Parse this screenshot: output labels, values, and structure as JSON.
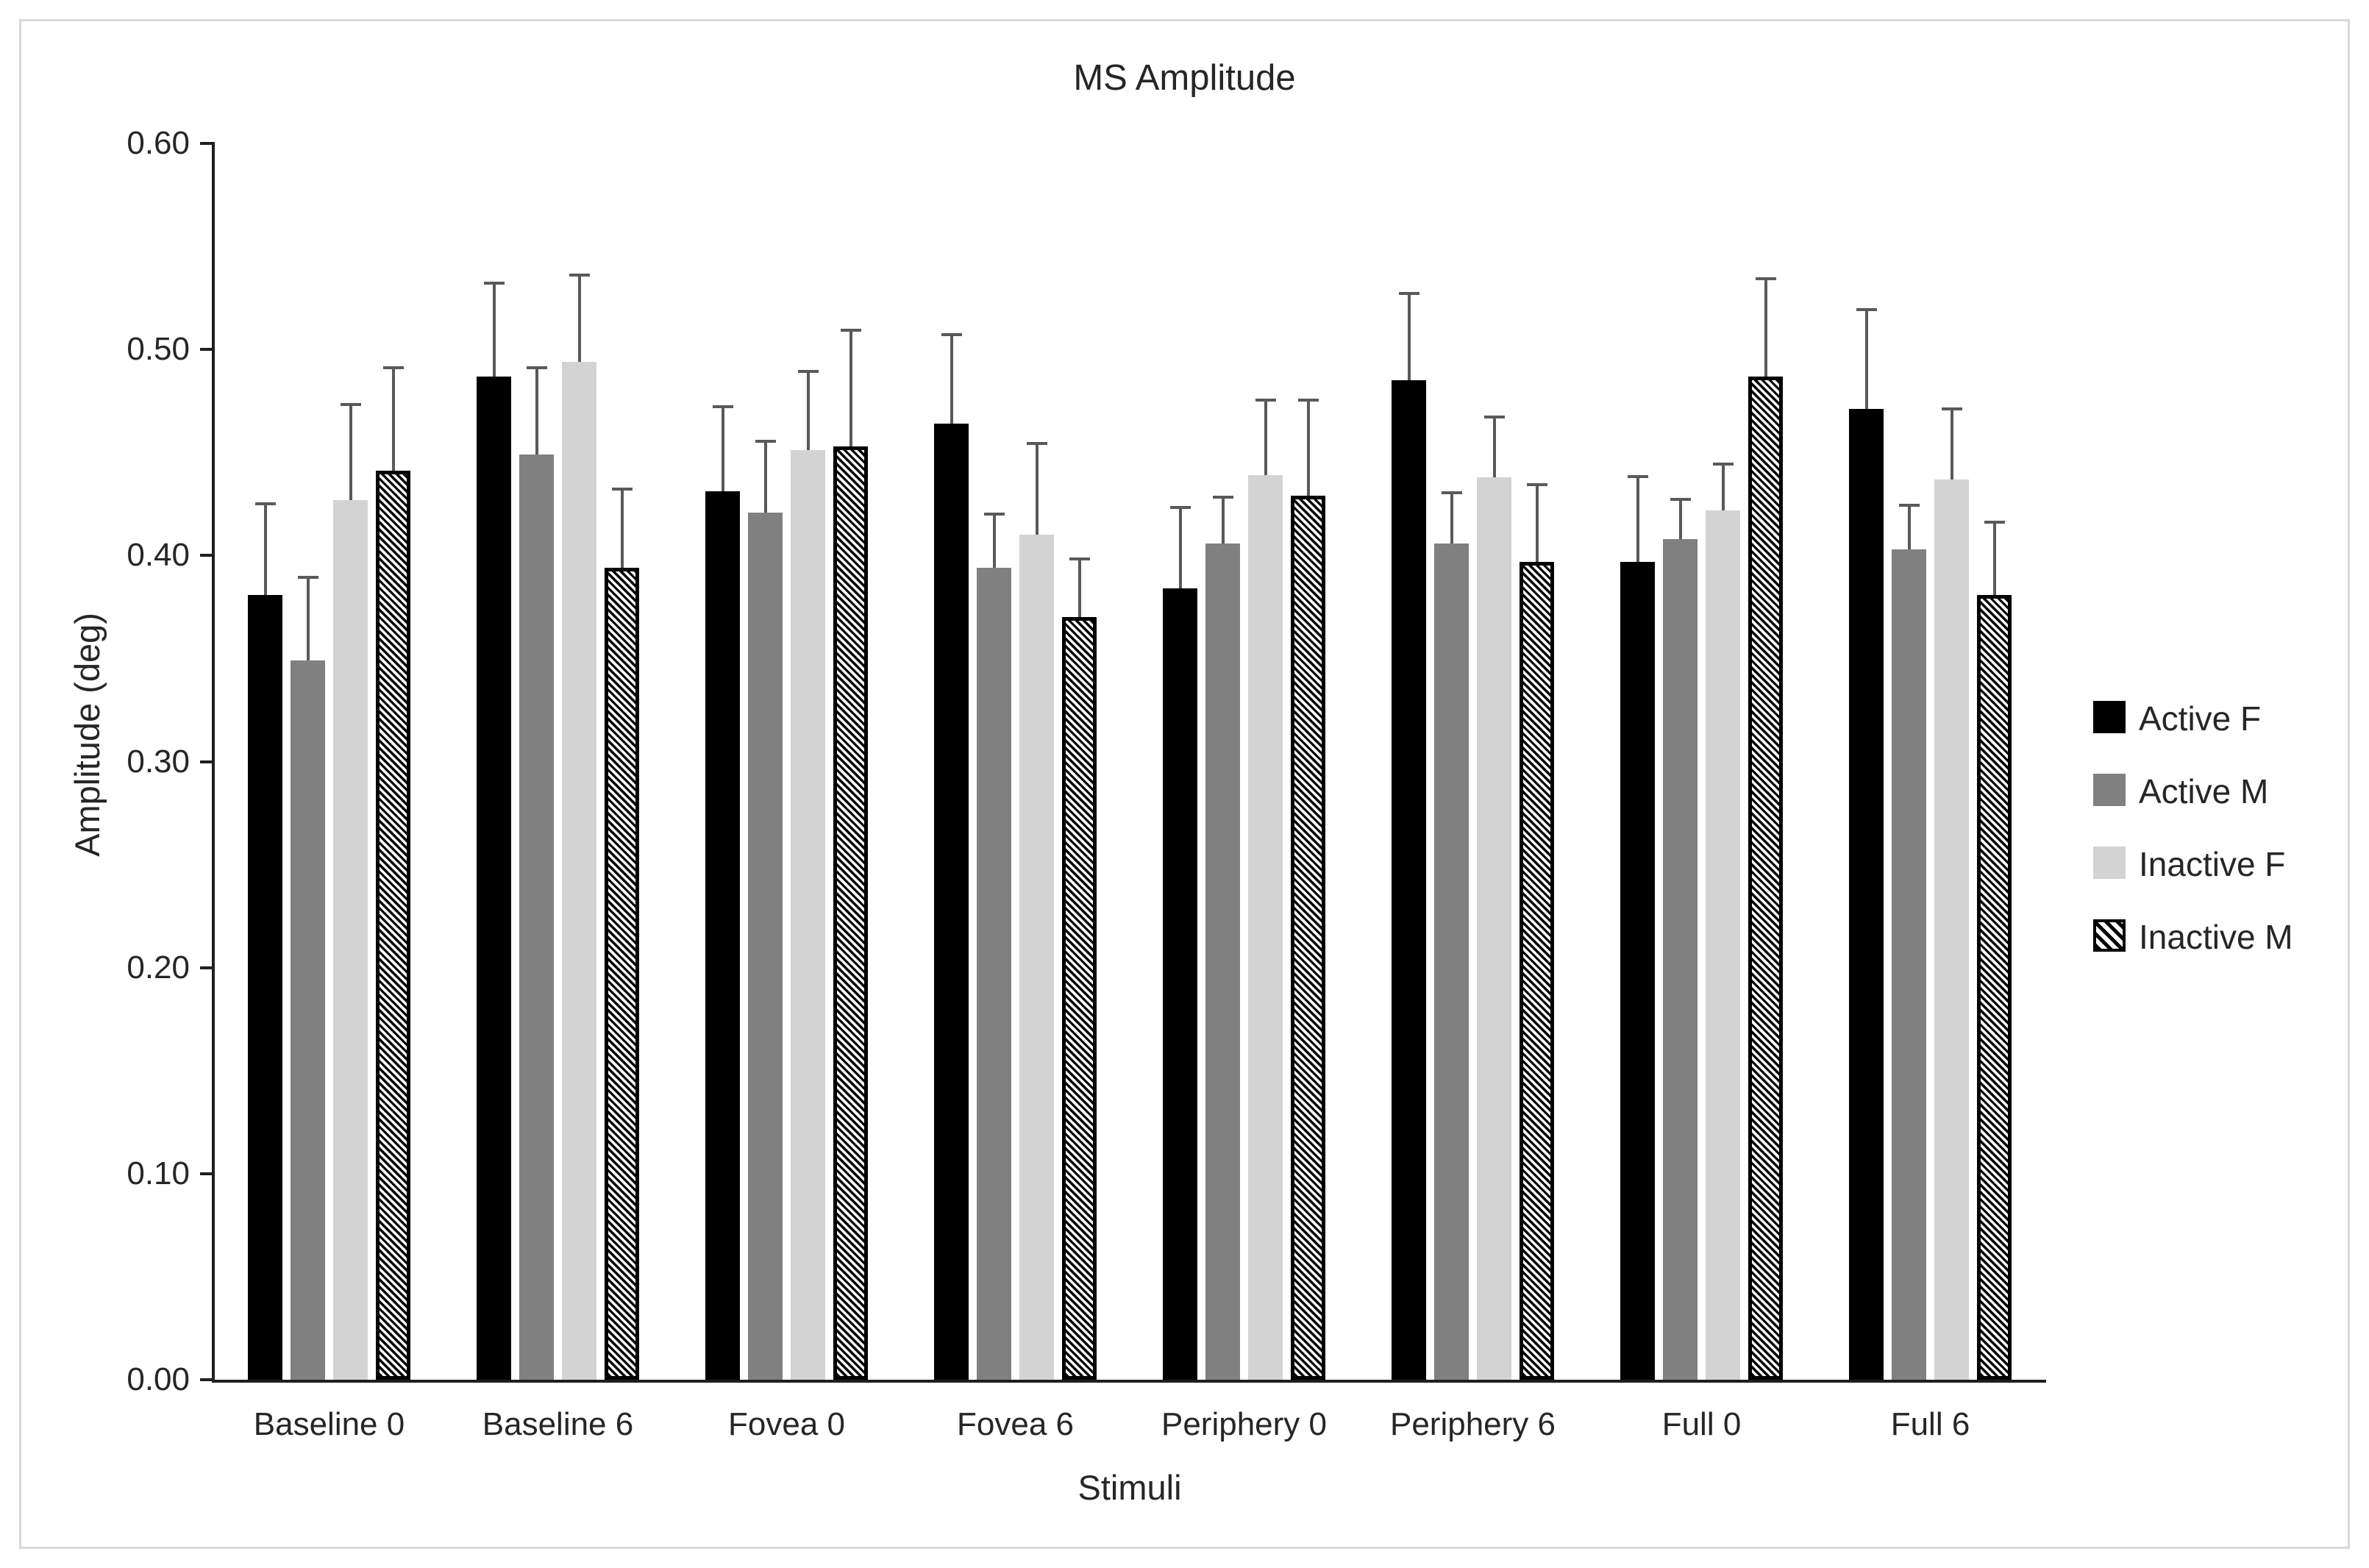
{
  "chart_data": {
    "type": "bar",
    "title": "MS Amplitude",
    "xlabel": "Stimuli",
    "ylabel": "Amplitude (deg)",
    "ylim": [
      0,
      0.6
    ],
    "grid": false,
    "legend_position": "right",
    "error_bars": "upper-only",
    "error_color": "#595959",
    "ytick_labels": [
      "0.00",
      "0.10",
      "0.20",
      "0.30",
      "0.40",
      "0.50",
      "0.60"
    ],
    "categories": [
      "Baseline 0",
      "Baseline 6",
      "Fovea 0",
      "Fovea 6",
      "Periphery 0",
      "Periphery 6",
      "Full 0",
      "Full 6"
    ],
    "series": [
      {
        "name": "Active F",
        "color": "#000000",
        "pattern": "solid",
        "values": [
          0.381,
          0.487,
          0.431,
          0.464,
          0.384,
          0.485,
          0.397,
          0.471
        ],
        "errors": [
          0.045,
          0.046,
          0.042,
          0.044,
          0.04,
          0.043,
          0.042,
          0.049
        ]
      },
      {
        "name": "Active M",
        "color": "#808080",
        "pattern": "solid",
        "values": [
          0.349,
          0.449,
          0.421,
          0.394,
          0.406,
          0.406,
          0.408,
          0.403
        ],
        "errors": [
          0.041,
          0.043,
          0.035,
          0.027,
          0.023,
          0.025,
          0.02,
          0.022
        ]
      },
      {
        "name": "Inactive F",
        "color": "#d3d3d3",
        "pattern": "solid",
        "values": [
          0.427,
          0.494,
          0.451,
          0.41,
          0.439,
          0.438,
          0.422,
          0.437
        ],
        "errors": [
          0.047,
          0.043,
          0.039,
          0.045,
          0.037,
          0.03,
          0.023,
          0.035
        ]
      },
      {
        "name": "Inactive M",
        "color": "#ffffff",
        "pattern": "diagonal-hatch",
        "values": [
          0.441,
          0.394,
          0.453,
          0.37,
          0.429,
          0.397,
          0.487,
          0.381
        ],
        "errors": [
          0.051,
          0.039,
          0.057,
          0.029,
          0.047,
          0.038,
          0.048,
          0.036
        ]
      }
    ]
  }
}
